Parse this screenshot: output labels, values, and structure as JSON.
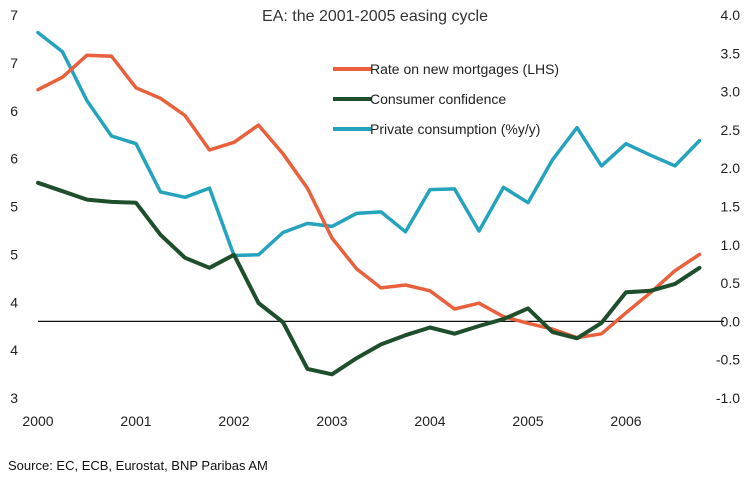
{
  "chart_data": {
    "type": "line",
    "title": "EA: the 2001-2005 easing cycle",
    "source": "Source: EC, ECB, Eurostat, BNP Paribas AM",
    "x_tick_labels": [
      "2000",
      "2001",
      "2002",
      "2003",
      "2004",
      "2005",
      "2006"
    ],
    "x_range": [
      2000,
      2007
    ],
    "left_axis": {
      "range": [
        3,
        7
      ],
      "tick_values": [
        3,
        3.5,
        4,
        4.5,
        5,
        5.5,
        6,
        6.5,
        7
      ],
      "tick_labels": [
        "3",
        "4",
        "4",
        "5",
        "5",
        "6",
        "6",
        "7",
        "7"
      ]
    },
    "right_axis": {
      "range": [
        -1.0,
        4.0
      ],
      "tick_values": [
        -1.0,
        -0.5,
        0.0,
        0.5,
        1.0,
        1.5,
        2.0,
        2.5,
        3.0,
        3.5,
        4.0
      ],
      "tick_labels": [
        "-1.0",
        "-0.5",
        "0.0",
        "0.5",
        "1.0",
        "1.5",
        "2.0",
        "2.5",
        "3.0",
        "3.5",
        "4.0"
      ]
    },
    "zero_line_right": 0.0,
    "legend_position": "top-right",
    "series": [
      {
        "name": "Rate on new mortgages (LHS)",
        "axis": "left",
        "color": "#e8603c",
        "x": [
          2000.0,
          2000.25,
          2000.5,
          2000.75,
          2001.0,
          2001.25,
          2001.5,
          2001.75,
          2002.0,
          2002.25,
          2002.5,
          2002.75,
          2003.0,
          2003.25,
          2003.5,
          2003.75,
          2004.0,
          2004.25,
          2004.5,
          2004.75,
          2005.0,
          2005.25,
          2005.5,
          2005.75,
          2006.0,
          2006.25,
          2006.5,
          2006.75
        ],
        "y": [
          6.22,
          6.35,
          6.58,
          6.57,
          6.24,
          6.13,
          5.95,
          5.59,
          5.67,
          5.85,
          5.55,
          5.19,
          4.67,
          4.35,
          4.15,
          4.18,
          4.12,
          3.93,
          3.99,
          3.85,
          3.78,
          3.72,
          3.63,
          3.67,
          3.89,
          4.1,
          4.33,
          4.5
        ]
      },
      {
        "name": "Consumer confidence",
        "axis": "right",
        "color": "#1f4e2c",
        "x": [
          2000.0,
          2000.25,
          2000.5,
          2000.75,
          2001.0,
          2001.25,
          2001.5,
          2001.75,
          2002.0,
          2002.25,
          2002.5,
          2002.75,
          2003.0,
          2003.25,
          2003.5,
          2003.75,
          2004.0,
          2004.25,
          2004.5,
          2004.75,
          2005.0,
          2005.25,
          2005.5,
          2005.75,
          2006.0,
          2006.25,
          2006.5,
          2006.75
        ],
        "y": [
          1.81,
          1.7,
          1.59,
          1.56,
          1.55,
          1.13,
          0.83,
          0.7,
          0.87,
          0.24,
          -0.01,
          -0.62,
          -0.69,
          -0.48,
          -0.3,
          -0.18,
          -0.08,
          -0.16,
          -0.06,
          0.03,
          0.17,
          -0.14,
          -0.22,
          -0.02,
          0.38,
          0.4,
          0.49,
          0.7
        ]
      },
      {
        "name": "Private consumption (%y/y)",
        "axis": "right",
        "color": "#25a3bd",
        "x": [
          2000.0,
          2000.25,
          2000.5,
          2000.75,
          2001.0,
          2001.25,
          2001.5,
          2001.75,
          2002.0,
          2002.25,
          2002.5,
          2002.75,
          2003.0,
          2003.25,
          2003.5,
          2003.75,
          2004.0,
          2004.25,
          2004.5,
          2004.75,
          2005.0,
          2005.25,
          2005.5,
          2005.75,
          2006.0,
          2006.25,
          2006.5,
          2006.75
        ],
        "y": [
          3.77,
          3.52,
          2.88,
          2.42,
          2.32,
          1.69,
          1.62,
          1.74,
          0.86,
          0.87,
          1.16,
          1.28,
          1.24,
          1.41,
          1.43,
          1.17,
          1.72,
          1.73,
          1.18,
          1.75,
          1.55,
          2.11,
          2.53,
          2.03,
          2.32,
          2.17,
          2.03,
          2.36
        ]
      }
    ]
  }
}
